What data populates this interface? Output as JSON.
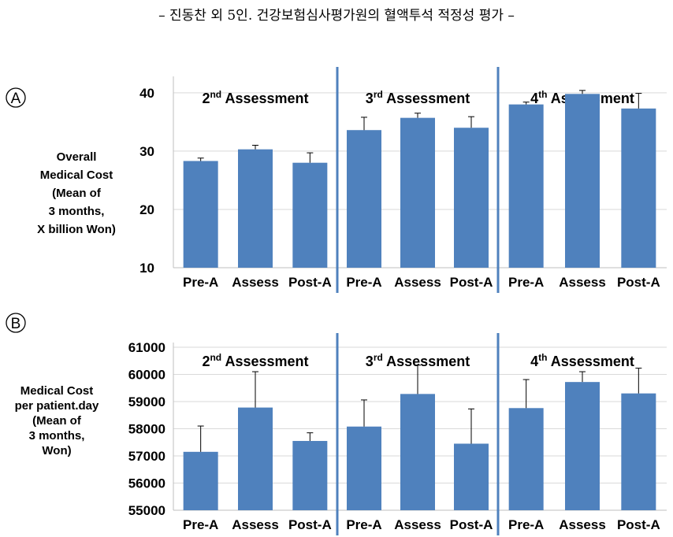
{
  "page": {
    "title": "– 진동찬 외 5인. 건강보험심사평가원의 혈액투석 적정성 평가 –"
  },
  "chart_data": [
    {
      "type": "bar",
      "panel_label": "A",
      "ylabel_lines": [
        "Overall",
        "Medical Cost",
        "(Mean of",
        "3 months,",
        "X billion Won)"
      ],
      "ylim": [
        10,
        42
      ],
      "yticks": [
        10,
        20,
        30,
        40
      ],
      "grid": true,
      "groups": [
        {
          "title": "2nd Assessment",
          "title_num": "2",
          "title_sup": "nd",
          "title_rest": "Assessment",
          "categories": [
            "Pre-A",
            "Assess",
            "Post-A"
          ],
          "values": [
            28.3,
            30.3,
            28.0
          ],
          "errors": [
            0.5,
            0.7,
            1.7
          ]
        },
        {
          "title": "3rd Assessment",
          "title_num": "3",
          "title_sup": "rd",
          "title_rest": "Assessment",
          "categories": [
            "Pre-A",
            "Assess",
            "Post-A"
          ],
          "values": [
            33.6,
            35.7,
            34.0
          ],
          "errors": [
            2.2,
            0.8,
            1.9
          ]
        },
        {
          "title": "4th Assessment",
          "title_num": "4",
          "title_sup": "th",
          "title_rest": "Assessment",
          "categories": [
            "Pre-A",
            "Assess",
            "Post-A"
          ],
          "values": [
            38.0,
            39.8,
            37.3
          ],
          "errors": [
            0.4,
            0.6,
            2.6
          ]
        }
      ],
      "colors": {
        "bar": "#4f81bd",
        "error_bar": "#000000",
        "divider": "#4f81bd",
        "grid": "#d9d9d9"
      }
    },
    {
      "type": "bar",
      "panel_label": "B",
      "ylabel_lines": [
        "Medical Cost",
        "per patient.day",
        "(Mean of",
        "3 months,",
        "Won)"
      ],
      "ylim": [
        55000,
        61000
      ],
      "yticks": [
        55000,
        56000,
        57000,
        58000,
        59000,
        60000,
        61000
      ],
      "grid": true,
      "groups": [
        {
          "title": "2nd Assessment",
          "title_num": "2",
          "title_sup": "nd",
          "title_rest": "Assessment",
          "categories": [
            "Pre-A",
            "Assess",
            "Post-A"
          ],
          "values": [
            57150,
            58780,
            57550
          ],
          "errors": [
            950,
            1320,
            300
          ]
        },
        {
          "title": "3rd Assessment",
          "title_num": "3",
          "title_sup": "rd",
          "title_rest": "Assessment",
          "categories": [
            "Pre-A",
            "Assess",
            "Post-A"
          ],
          "values": [
            58080,
            59280,
            57450
          ],
          "errors": [
            980,
            1060,
            1280
          ]
        },
        {
          "title": "4th Assessment",
          "title_num": "4",
          "title_sup": "th",
          "title_rest": "Assessment",
          "categories": [
            "Pre-A",
            "Assess",
            "Post-A"
          ],
          "values": [
            58760,
            59720,
            59300
          ],
          "errors": [
            1050,
            380,
            930
          ]
        }
      ],
      "colors": {
        "bar": "#4f81bd",
        "error_bar": "#000000",
        "divider": "#4f81bd",
        "grid": "#d9d9d9"
      }
    }
  ]
}
